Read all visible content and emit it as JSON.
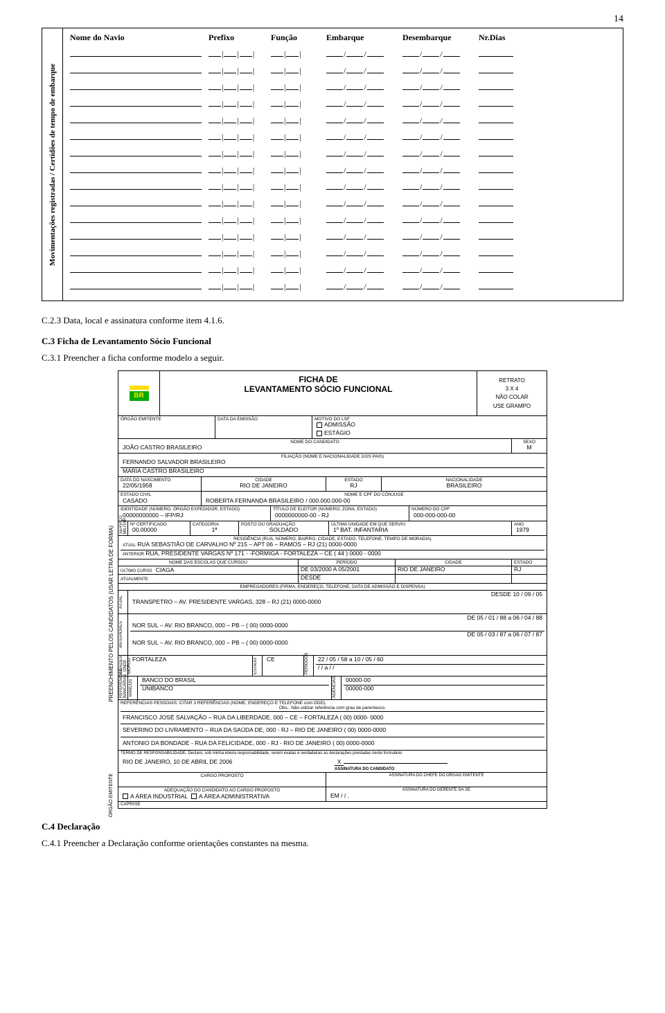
{
  "page_number": "14",
  "mov_table": {
    "side_label": "Movimentações registradas / Certidões de tempo de embarque",
    "headers": [
      "Nome do Navio",
      "Prefixo",
      "Função",
      "Embarque",
      "Desembarque",
      "Nr.Dias"
    ],
    "row_count": 15
  },
  "sections": {
    "c23": "C.2.3 Data, local e assinatura conforme item 4.1.6.",
    "c3": "C.3 Ficha de Levantamento Sócio Funcional",
    "c31": "C.3.1 Preencher a ficha conforme modelo a seguir.",
    "c4": "C.4 Declaração",
    "c41": "C.4.1 Preencher a Declaração conforme orientações constantes na mesma."
  },
  "ficha": {
    "side_label": "PREENCHIMENTO PELOS CANDIDATOS (USAR LETRA DE FORMA)",
    "side_label2": "ÓRGÃO EMITENTE",
    "title1": "FICHA DE",
    "title2": "LEVANTAMENTO SÓCIO FUNCIONAL",
    "logo_text": "BR",
    "photo": {
      "l1": "RETRATO",
      "l2": "3 X 4",
      "l3": "NÃO COLAR",
      "l4": "USE GRAMPO"
    },
    "row_orgao": {
      "lbl1": "ÓRGÃO     EMITENTE",
      "lbl2": "DATA   DA   EMISSÃO",
      "lbl3": "MOTIVO   DO   LSF",
      "opt1": "ADMISSÃO",
      "opt2": "ESTÁGIO"
    },
    "nome": {
      "lbl": "NOME      DO      CANDIDATO",
      "val": "JOÃO CASTRO BRASILEIRO",
      "sexo_lbl": "SEXO",
      "sexo_val": "M"
    },
    "filiacao": {
      "lbl": "FILIAÇÃO         (NOME E NACIONALIDADE DOS PAIS)",
      "v1": "FERNANDO SALVADOR BRASILEIRO",
      "v2": "MARIA CASTRO BRASILEIRO"
    },
    "nasc": {
      "lbl1": "DATA DO NASCIMENTO",
      "v1": "22/05/1958",
      "lbl2": "CIDADE",
      "v2": "RIO DE JANEIRO",
      "lbl3": "ESTADO",
      "v3": "RJ",
      "lbl4": "NACIONALIDADE",
      "v4": "BRASILEIRO"
    },
    "civil": {
      "lbl1": "ESTADO  CIVIL",
      "v1": "CASADO",
      "lbl2": "NOME   E   CPF   DO   CÔNJUGE",
      "v2": "ROBERTA FERNANDA BRASILEIRO / 000.000.000-00"
    },
    "ident": {
      "lbl1": "IDENTIDADE (NÚMERO, ÓRGÃO EXPEDIDOR, ESTADO)",
      "v1": "00000000000 – IFP/RJ",
      "lbl2": "TÍTULO DE ELEITOR (NÚMERO, ZONA, ESTADO)",
      "v2": "0000000000-00 - RJ",
      "lbl3": "NÚMERO DO CPF",
      "v3": "000-000-000-00"
    },
    "milit": {
      "side": "SERVIÇO MILITAR",
      "lbl1": "Nº CERTIFICADO",
      "v1": "00.00000",
      "lbl2": "CATEGORIA",
      "v2": "1ª",
      "lbl3": "POSTO OU GRADUAÇÃO",
      "v3": "SOLDADO",
      "lbl4": "ÚLTIMA UNIDADE EM QUE SERVIU",
      "v4": "1º BAT. INFANTARIA",
      "lbl5": "ANO",
      "v5": "1979"
    },
    "resid": {
      "lbl": "RESIDÊNCIA (RUA, NÚMERO, BAIRRO, CIDADE, ESTADO, TELEFONE, TEMPO DE MORADIA)",
      "a_lbl": "ATUAL",
      "a_val": "RUA SEBASTIÃO DE CARVALHO Nº 215 – APT 06 – RAMOS – RJ (21) 0000-0000",
      "b_lbl": "ANTERIOR",
      "b_val": "RUA, PRESIDENTE VARGAS Nº 171 -  -FORMIGA -   FORTALEZA – CE ( 44 ) 0000 - 0000"
    },
    "escola": {
      "lbl1": "NOME DAS ESCOLAS QUE CURSOU",
      "lbl2": "PERÍODO",
      "lbl3": "CIDADE",
      "lbl4": "ESTADO",
      "r1a": "ÚLTIMO CURSO",
      "r1b": "CIAGA",
      "r1c": "DE  03/2000  A  05/2001",
      "r1d": "RIO DE JANEIRO",
      "r1e": "RJ",
      "r2a": "ATUALMENTE",
      "r2c": "DESDE"
    },
    "empreg": {
      "lbl": "EMPREGADORES   (FIRMA, ENDEREÇO, TELEFONE, DATA DE ADMISSÃO E DISPENSA)",
      "side1": "ATUAL",
      "v1": "TRANSPETRO – AV. PRESIDENTE VARGAS, 328 – RJ (21) 0000-0000",
      "d1": "DESDE  10    / 09    / 05",
      "side2": "ANTERIORES",
      "v2": "NOR SUL – AV. RIO BRANCO, 000 – PB – ( 00) 0000-0000",
      "d2": "DE 05   / 01  / 88  a  06  / 04  / 88",
      "v3": "NOR SUL – AV. RIO BRANCO, 000 – PB – ( 00) 0000-0000",
      "d3": "DE 05   / 03  / 87  a  06  / 07  / 87"
    },
    "moradia": {
      "side": "CIDADES ONDE MOROU",
      "v1": "FORTALEZA",
      "e_lbl": "ESTADO",
      "e_val": "CE",
      "p_lbl": "PERÍODOS",
      "p1": "22    / 05  / 58   a  10    / 05    / 60",
      "p2": "/     /      a      /     /"
    },
    "ref_banc": {
      "side": "REFERÊNCIAS BANCÁRIAS",
      "l_lbl": "BANCOS",
      "v1": "BANCO DO BRASIL",
      "v2": "UNIBANCO",
      "r_lbl": "AGÊNCIAS",
      "a1": "00000-00",
      "a2": "00000-000"
    },
    "ref_pes": {
      "lbl": "REFERÊNCIAS PESSOAIS: CITAR 3 REFERÊNCIAS (NOME, ENDEREÇO E TELEFONE com DDD).",
      "obs": "Obs.: Não utilizar referência com grau de parentesco.",
      "v1": "FRANCISCO JOSÉ SALVAÇÃO – RUA DA LIBERDADE, 000 – CE – FORTALEZA ( 00) 0000- 0000",
      "v2": "SEVERINO DO LIVRAMENTO – RUA DA SAÚDA DE, 000 - RJ – RIO DE JANEIRO ( 00) 0000-0000",
      "v3": "ANTONIO DA BONDADE -  RUA DA FELICIDADE, 000 -  RJ  - RIO DE JANEIRO ( 00) 0000-0000"
    },
    "termo": {
      "lbl": "TERMO DE RESPONSABILIDADE. Declaro, sob minha inteira responsabilidade, serem exatas e verdadeiras as declarações prestadas neste formulário",
      "local": "RIO DE JANEIRO, 10 DE ABRIL DE 2006",
      "x": "X",
      "ass": "ASSINATURA DO CANDIDATO",
      "ass2": "ASSINATURA DO CHEFE DO ÓRGÃO EMITENTE"
    },
    "bottom": {
      "lbl1": "CARGO PROPOSTO",
      "lbl2": "ADEQUAÇÃO DO CANDIDATO AO CARGO PROPOSTO",
      "lbl3": "ASSINATURA DO GERENTE DA SE",
      "em": "EM      /    /   .",
      "area1": "A ÁREA INDUSTRIAL",
      "area2": "A ÁREA ADMINISTRATIVA",
      "foot": "CAPRSSE"
    }
  }
}
